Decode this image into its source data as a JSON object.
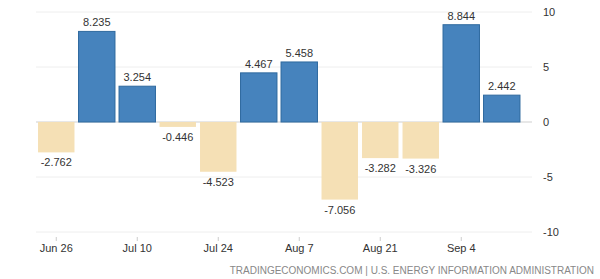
{
  "chart_data": {
    "type": "bar",
    "categories": [
      "Jun 26",
      null,
      "Jul 10",
      null,
      "Jul 24",
      null,
      "Aug 7",
      null,
      "Aug 21",
      null,
      "Sep 4",
      null
    ],
    "values": [
      -2.762,
      8.235,
      3.254,
      -0.446,
      -4.523,
      4.467,
      5.458,
      -7.056,
      -3.282,
      -3.326,
      8.844,
      2.442
    ],
    "colors": [
      "#f5e0b5",
      "#4683bd",
      "#4683bd",
      "#f5e0b5",
      "#f5e0b5",
      "#4683bd",
      "#4683bd",
      "#f5e0b5",
      "#f5e0b5",
      "#f5e0b5",
      "#4683bd",
      "#4683bd"
    ],
    "data_labels": true,
    "ylim": [
      -10,
      10
    ],
    "yticks": [
      -10,
      -5,
      0,
      5,
      10
    ],
    "grid": true,
    "source": "TRADINGECONOMICS.COM | U.S. ENERGY INFORMATION ADMINISTRATION"
  }
}
